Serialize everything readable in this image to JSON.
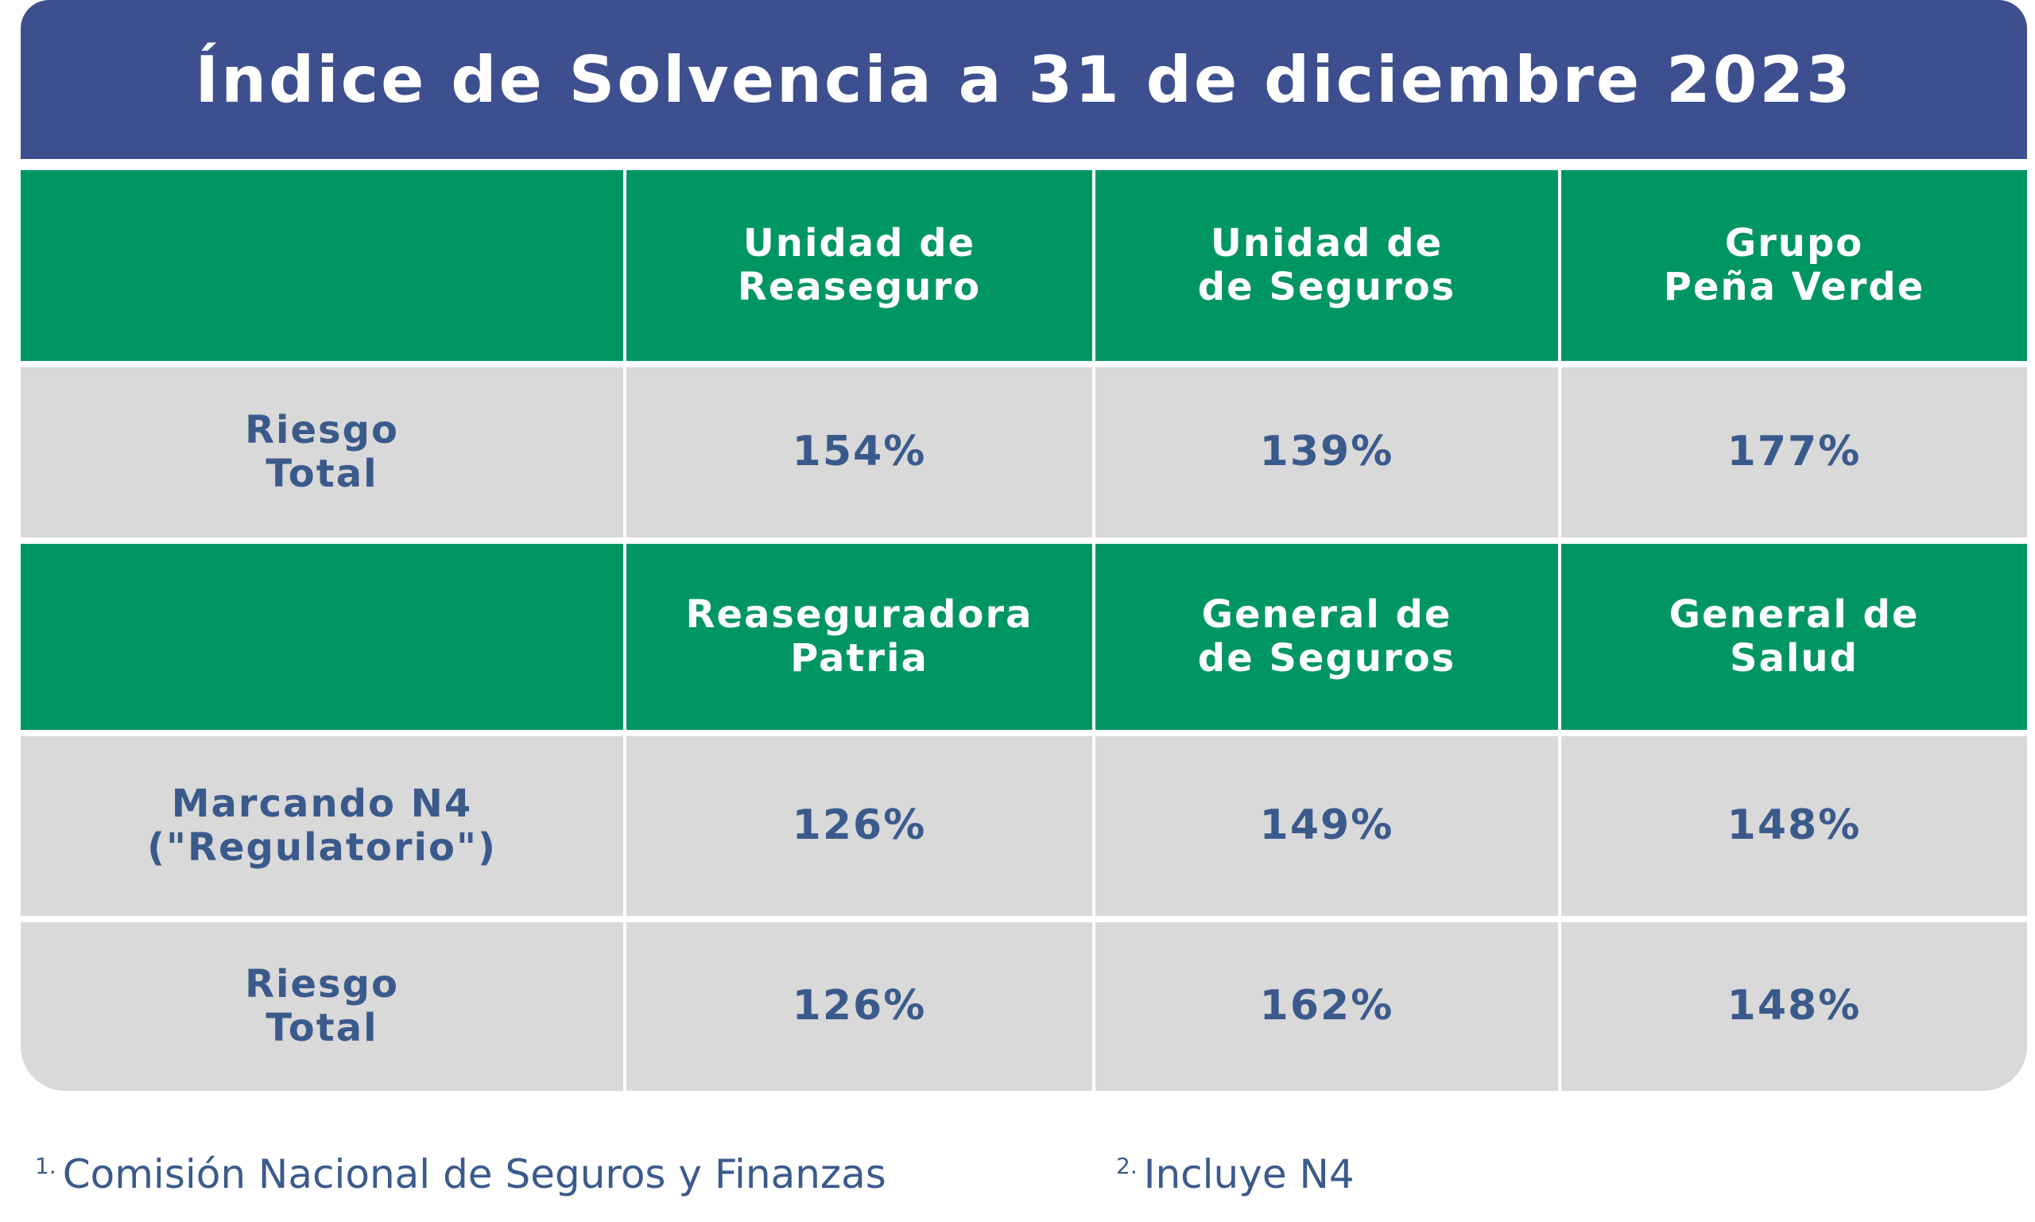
{
  "title": "Índice de Solvencia a 31 de diciembre 2023",
  "section1": {
    "headers": [
      "Unidad de\nReaseguro",
      "Unidad de\nde Seguros",
      "Grupo\nPeña Verde"
    ],
    "row": {
      "label": "Riesgo\nTotal",
      "values": [
        "154%",
        "139%",
        "177%"
      ]
    }
  },
  "section2": {
    "headers": [
      "Reaseguradora\nPatria",
      "General de\nde Seguros",
      "General de\nSalud"
    ],
    "rows": [
      {
        "label": "Marcando N4\n(\"Regulatorio\")",
        "values": [
          "126%",
          "149%",
          "148%"
        ]
      },
      {
        "label": "Riesgo\nTotal",
        "values": [
          "126%",
          "162%",
          "148%"
        ]
      }
    ]
  },
  "footnotes": [
    {
      "mark": "1.",
      "text": "Comisión Nacional de Seguros y Finanzas"
    },
    {
      "mark": "2.",
      "text": "Incluye N4"
    }
  ],
  "colors": {
    "title_bg": "#3d4f8f",
    "header_bg": "#009662",
    "cell_bg": "#d9d9d9",
    "cell_text": "#3b5a8c"
  }
}
